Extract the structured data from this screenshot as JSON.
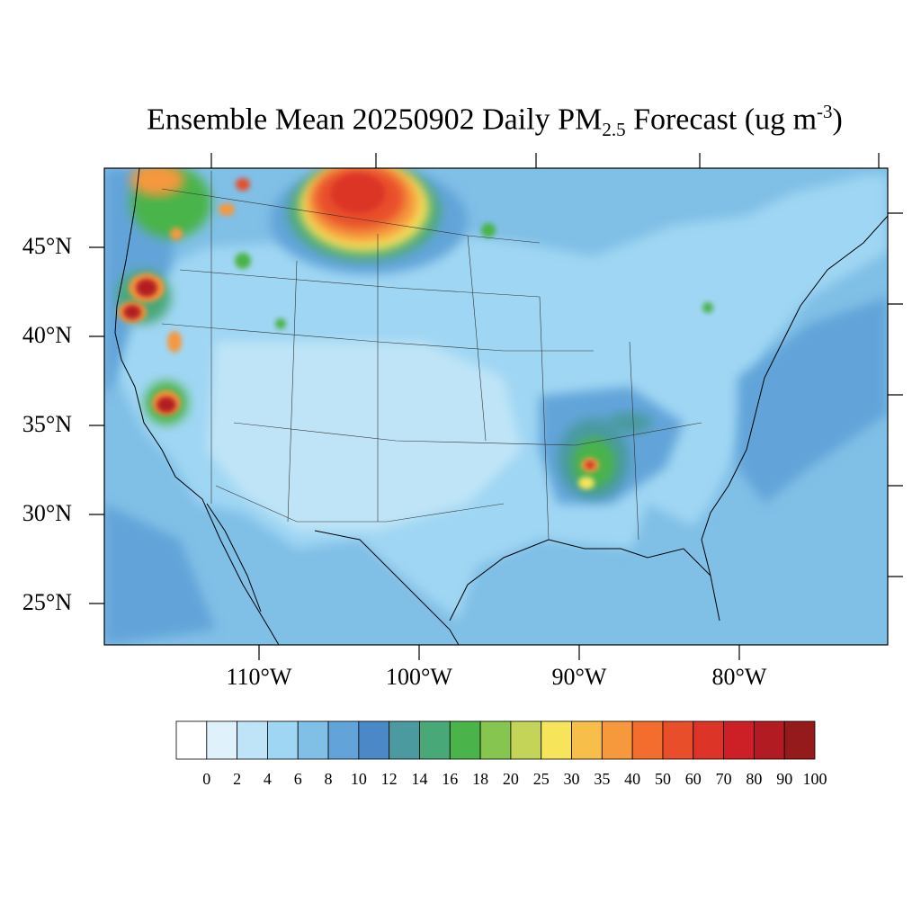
{
  "title": {
    "prefix": "Ensemble Mean 20250902 Daily PM",
    "subscript": "2.5",
    "middle": " Forecast (ug m",
    "superscript": "-3",
    "suffix": ")"
  },
  "map": {
    "lat_labels": [
      "45°N",
      "40°N",
      "35°N",
      "30°N",
      "25°N"
    ],
    "lon_labels": [
      "110°W",
      "100°W",
      "90°W",
      "80°W"
    ]
  },
  "colorbar": {
    "labels": [
      "0",
      "2",
      "4",
      "6",
      "8",
      "10",
      "12",
      "14",
      "16",
      "18",
      "20",
      "25",
      "30",
      "35",
      "40",
      "50",
      "60",
      "70",
      "80",
      "90",
      "100"
    ],
    "colors": [
      "#ffffff",
      "#dff1fb",
      "#bfe4f7",
      "#9fd6f3",
      "#80bfe6",
      "#62a4d9",
      "#4a88c8",
      "#4a9aa0",
      "#48a878",
      "#4ab44a",
      "#85c550",
      "#c3d458",
      "#f6e45a",
      "#f7bf4a",
      "#f6983c",
      "#f26d2e",
      "#e84e2a",
      "#dc3426",
      "#cc2026",
      "#b31b22",
      "#951a1c"
    ]
  }
}
